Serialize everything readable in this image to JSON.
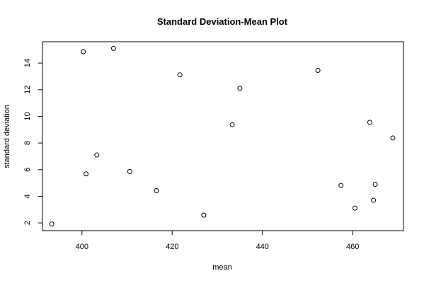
{
  "chart_data": {
    "type": "scatter",
    "title": "Standard Deviation-Mean Plot",
    "xlabel": "mean",
    "ylabel": "standard deviation",
    "xlim": [
      391.25,
      471.26
    ],
    "ylim": [
      1.42,
      15.6
    ],
    "x_ticks": [
      400,
      420,
      440,
      460
    ],
    "x_tick_labels": [
      "400",
      "420",
      "440",
      "460"
    ],
    "y_ticks": [
      2,
      4,
      6,
      8,
      10,
      12,
      14
    ],
    "y_tick_labels": [
      "2",
      "4",
      "6",
      "8",
      "10",
      "12",
      "14"
    ],
    "grid": false,
    "legend": "none",
    "points": [
      {
        "x": 393.3,
        "y": 1.92
      },
      {
        "x": 400.3,
        "y": 14.85
      },
      {
        "x": 400.9,
        "y": 5.68
      },
      {
        "x": 403.3,
        "y": 7.1
      },
      {
        "x": 407.0,
        "y": 15.1
      },
      {
        "x": 410.6,
        "y": 5.86
      },
      {
        "x": 416.5,
        "y": 4.42
      },
      {
        "x": 421.7,
        "y": 13.12
      },
      {
        "x": 427.0,
        "y": 2.58
      },
      {
        "x": 433.3,
        "y": 9.37
      },
      {
        "x": 435.0,
        "y": 12.1
      },
      {
        "x": 452.3,
        "y": 13.45
      },
      {
        "x": 457.4,
        "y": 4.81
      },
      {
        "x": 460.5,
        "y": 3.11
      },
      {
        "x": 463.8,
        "y": 9.55
      },
      {
        "x": 464.6,
        "y": 3.7
      },
      {
        "x": 465.0,
        "y": 4.9
      },
      {
        "x": 468.9,
        "y": 8.38
      }
    ]
  }
}
